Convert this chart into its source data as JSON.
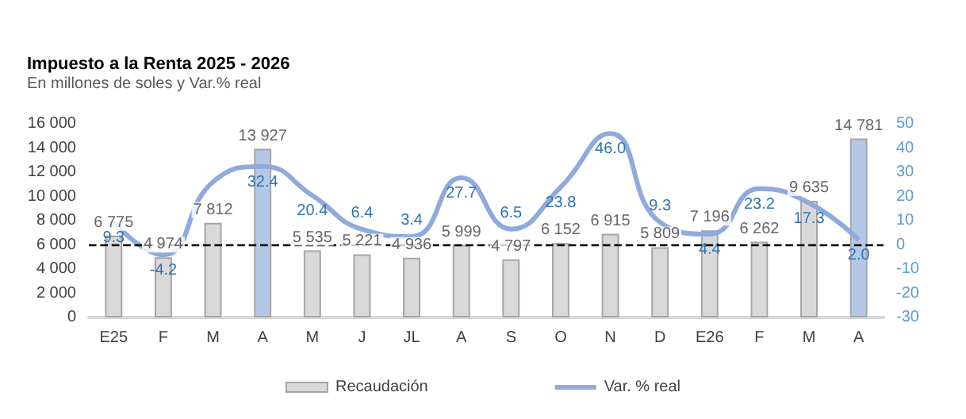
{
  "chart_data": {
    "type": "bar",
    "title": "Impuesto a la Renta 2025 - 2026",
    "subtitle": "En millones de soles y Var.% real",
    "categories": [
      "E25",
      "F",
      "M",
      "A",
      "M",
      "J",
      "JL",
      "A",
      "S",
      "O",
      "N",
      "D",
      "E26",
      "F",
      "M",
      "A"
    ],
    "series": [
      {
        "name": "Recaudación",
        "color": "#d9d9d9",
        "colors": [
          "#d9d9d9",
          "#d9d9d9",
          "#d9d9d9",
          "#b4c7e7",
          "#d9d9d9",
          "#d9d9d9",
          "#d9d9d9",
          "#d9d9d9",
          "#d9d9d9",
          "#d9d9d9",
          "#d9d9d9",
          "#d9d9d9",
          "#d9d9d9",
          "#d9d9d9",
          "#d9d9d9",
          "#b4c7e7"
        ],
        "values": [
          6775,
          4974,
          7812,
          13927,
          5535,
          5221,
          4936,
          5999,
          4797,
          6152,
          6915,
          5809,
          7196,
          6262,
          9635,
          14781
        ],
        "value_labels": [
          "6 775",
          "4 974",
          "7 812",
          "13 927",
          "5 535",
          "5 221",
          "4 936",
          "5 999",
          "4 797",
          "6 152",
          "6 915",
          "5 809",
          "7 196",
          "6 262",
          "9 635",
          "14 781"
        ]
      },
      {
        "name": "Var. % real",
        "type": "line",
        "axis": "y2",
        "color": "#8faadc",
        "values": [
          9.3,
          -4.2,
          26,
          32.4,
          20.4,
          6.4,
          3.4,
          27.7,
          6.5,
          23.8,
          46.0,
          9.3,
          4.4,
          23.2,
          17.3,
          2.0
        ],
        "value_labels": [
          "9.3",
          "-4.2",
          null,
          "32.4",
          "20.4",
          "6.4",
          "3.4",
          "27.7",
          "6.5",
          "23.8",
          "46.0",
          "9.3",
          "4.4",
          "23.2",
          "17.3",
          "2.0"
        ]
      }
    ],
    "ylim": [
      0,
      16000
    ],
    "yticks": [
      0,
      2000,
      4000,
      6000,
      8000,
      10000,
      12000,
      14000,
      16000
    ],
    "y2lim": [
      -30,
      50
    ],
    "y2ticks": [
      -30,
      -20,
      -10,
      0,
      10,
      20,
      30,
      40,
      50
    ],
    "ref_lines": [
      {
        "axis": "y2",
        "value": 0,
        "color": "#000000",
        "line_style": "dashed"
      }
    ],
    "grid": false,
    "legend": "bottom",
    "marker": "none"
  }
}
